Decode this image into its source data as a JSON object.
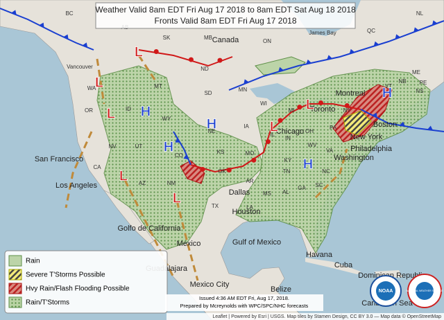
{
  "header": {
    "title": "Weather Valid 8am EDT Fri Aug 17 2018 to 8am EDT Sat Aug 18 2018",
    "subtitle": "Fronts Valid 8am EDT Fri Aug 17 2018"
  },
  "legend": [
    "Rain",
    "Severe T'Storms Possible",
    "Hvy Rain/Flash Flooding Possible",
    "Rain/T'Storms"
  ],
  "issued": [
    "Issued 4:36 AM EDT Fri, Aug 17, 2018.",
    "Prepared by Mcreynolds with WPC/SPC/NHC forecasts"
  ],
  "attribution": "Leaflet | Powered by Esri | USGS. Map tiles by Stamen Design, CC BY 3.0 — Map data © OpenStreetMap",
  "logos": [
    "NOAA",
    "NATIONAL WEATHER SERVICE"
  ],
  "places": [
    "BC",
    "AB",
    "SK",
    "MB",
    "ON",
    "QC",
    "NL",
    "Canada",
    "James Bay",
    "Vancouver",
    "WA",
    "OR",
    "ID",
    "MT",
    "WY",
    "ND",
    "SD",
    "NE",
    "MN",
    "IA",
    "WI",
    "MI",
    "IL",
    "IN",
    "OH",
    "PA",
    "NY",
    "VT",
    "ME",
    "NB",
    "NS",
    "PE",
    "KS",
    "MO",
    "KY",
    "WV",
    "VA",
    "NC",
    "TN",
    "SC",
    "GA",
    "AL",
    "MS",
    "AR",
    "LA",
    "OK",
    "TX",
    "NM",
    "CO",
    "AZ",
    "UT",
    "NV",
    "CA",
    "San Francisco",
    "Los Angeles",
    "Dallas",
    "Houston",
    "Chicago",
    "Toronto",
    "Montreal",
    "Boston",
    "New York",
    "Philadelphia",
    "Washington",
    "Golfo de California",
    "Gulf of Mexico",
    "Mexico",
    "Guadalajara",
    "Mexico City",
    "Havana",
    "Cuba",
    "Belize",
    "Dominican Republic",
    "Caribbean Sea"
  ],
  "pressure_centers": [
    "L",
    "L",
    "L",
    "L",
    "L",
    "L",
    "L",
    "H",
    "H",
    "H",
    "H",
    "H"
  ]
}
